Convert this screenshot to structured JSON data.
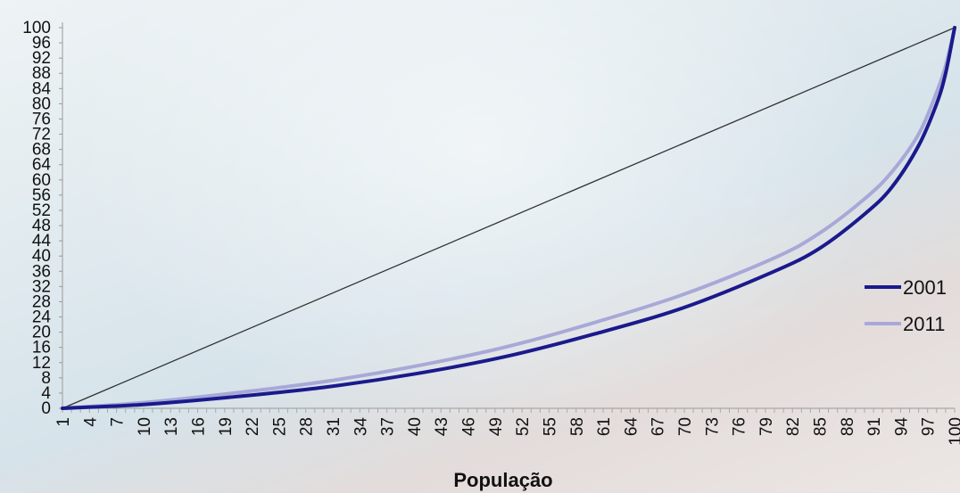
{
  "chart_data": {
    "type": "line",
    "title": "",
    "xlabel": "População",
    "ylabel": "",
    "xlim": [
      1,
      100
    ],
    "ylim": [
      0,
      100
    ],
    "y_ticks": [
      0,
      4,
      8,
      12,
      16,
      20,
      24,
      28,
      32,
      36,
      40,
      44,
      48,
      52,
      56,
      60,
      64,
      68,
      72,
      76,
      80,
      84,
      88,
      92,
      96,
      100
    ],
    "x_ticks": [
      1,
      4,
      7,
      10,
      13,
      16,
      19,
      22,
      25,
      28,
      31,
      34,
      37,
      40,
      43,
      46,
      49,
      52,
      55,
      58,
      61,
      64,
      67,
      70,
      73,
      76,
      79,
      82,
      85,
      88,
      91,
      94,
      97,
      100
    ],
    "grid": false,
    "legend_position": "right",
    "equality_line": {
      "x": [
        1,
        100
      ],
      "y": [
        0,
        100
      ],
      "color": "#333333"
    },
    "series": [
      {
        "name": "2001",
        "color": "#1a1a8c",
        "x": [
          1,
          10,
          20,
          30,
          40,
          50,
          60,
          70,
          80,
          85,
          90,
          93,
          96,
          98,
          99,
          100
        ],
        "y": [
          0,
          1,
          3,
          5.5,
          9,
          13.5,
          19.5,
          26.5,
          36,
          42,
          51,
          58,
          69,
          80,
          88,
          100
        ]
      },
      {
        "name": "2011",
        "color": "#a8a8d8",
        "x": [
          1,
          10,
          20,
          30,
          40,
          50,
          60,
          70,
          80,
          85,
          90,
          93,
          96,
          98,
          99,
          100
        ],
        "y": [
          0,
          1.5,
          4,
          7,
          11,
          16,
          22.5,
          30,
          39.5,
          46,
          55,
          62,
          72,
          83,
          90,
          100
        ]
      }
    ]
  }
}
